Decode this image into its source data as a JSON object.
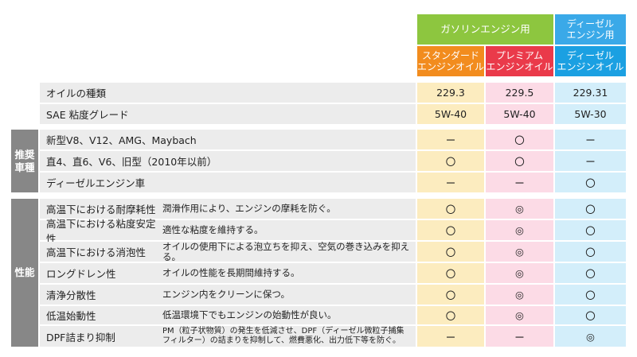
{
  "colors": {
    "gasoline_header": "#8dc63f",
    "diesel_header": "#3aa9e8",
    "standard_header": "#f28c1e",
    "premium_header": "#ea3a4a",
    "diesel_oil_header": "#1ba0e2",
    "standard_col": "#fcecbf",
    "premium_col": "#fcdbe6",
    "diesel_col": "#d3eefa",
    "label_bg": "#ececec",
    "side_bg": "#878787"
  },
  "header": {
    "gasoline_group": "ガソリンエンジン用",
    "diesel_group": "ディーゼル\nエンジン用",
    "columns": [
      "スタンダード\nエンジンオイル",
      "プレミアム\nエンジンオイル",
      "ディーゼル\nエンジンオイル"
    ]
  },
  "spec_rows": [
    {
      "label": "オイルの種類",
      "values": [
        "229.3",
        "229.5",
        "229.31"
      ]
    },
    {
      "label": "SAE 粘度グレード",
      "values": [
        "5W-40",
        "5W-40",
        "5W-30"
      ]
    }
  ],
  "recommended": {
    "side_label": "推奨\n車種",
    "rows": [
      {
        "label": "新型V8、V12、AMG、Maybach",
        "values": [
          "ー",
          "〇",
          "ー"
        ]
      },
      {
        "label": "直4、直6、V6、旧型（2010年以前）",
        "values": [
          "〇",
          "〇",
          "ー"
        ]
      },
      {
        "label": "ディーゼルエンジン車",
        "values": [
          "ー",
          "ー",
          "〇"
        ]
      }
    ]
  },
  "performance": {
    "side_label": "性能",
    "rows": [
      {
        "label": "高温下における耐摩耗性",
        "desc": "潤滑作用により、エンジンの摩耗を防ぐ。",
        "values": [
          "〇",
          "◎",
          "〇"
        ]
      },
      {
        "label": "高温下における粘度安定性",
        "desc": "適性な粘度を維持する。",
        "values": [
          "〇",
          "◎",
          "〇"
        ]
      },
      {
        "label": "高温下における消泡性",
        "desc": "オイルの使用下による泡立ちを抑え、空気の巻き込みを抑える。",
        "values": [
          "〇",
          "◎",
          "〇"
        ]
      },
      {
        "label": "ロングドレン性",
        "desc": "オイルの性能を長期間維持する。",
        "values": [
          "〇",
          "◎",
          "〇"
        ]
      },
      {
        "label": "清浄分散性",
        "desc": "エンジン内をクリーンに保つ。",
        "values": [
          "〇",
          "◎",
          "〇"
        ]
      },
      {
        "label": "低温始動性",
        "desc": "低温環境下でもエンジンの始動性が良い。",
        "values": [
          "〇",
          "◎",
          "〇"
        ]
      },
      {
        "label": "DPF詰まり抑制",
        "desc": "PM（粒子状物質）の発生を低減させ、DPF（ディーゼル微粒子捕集\nフィルター）の詰まりを抑制して、燃費悪化、出力低下等を防ぐ。",
        "values": [
          "ー",
          "ー",
          "◎"
        ]
      }
    ]
  }
}
